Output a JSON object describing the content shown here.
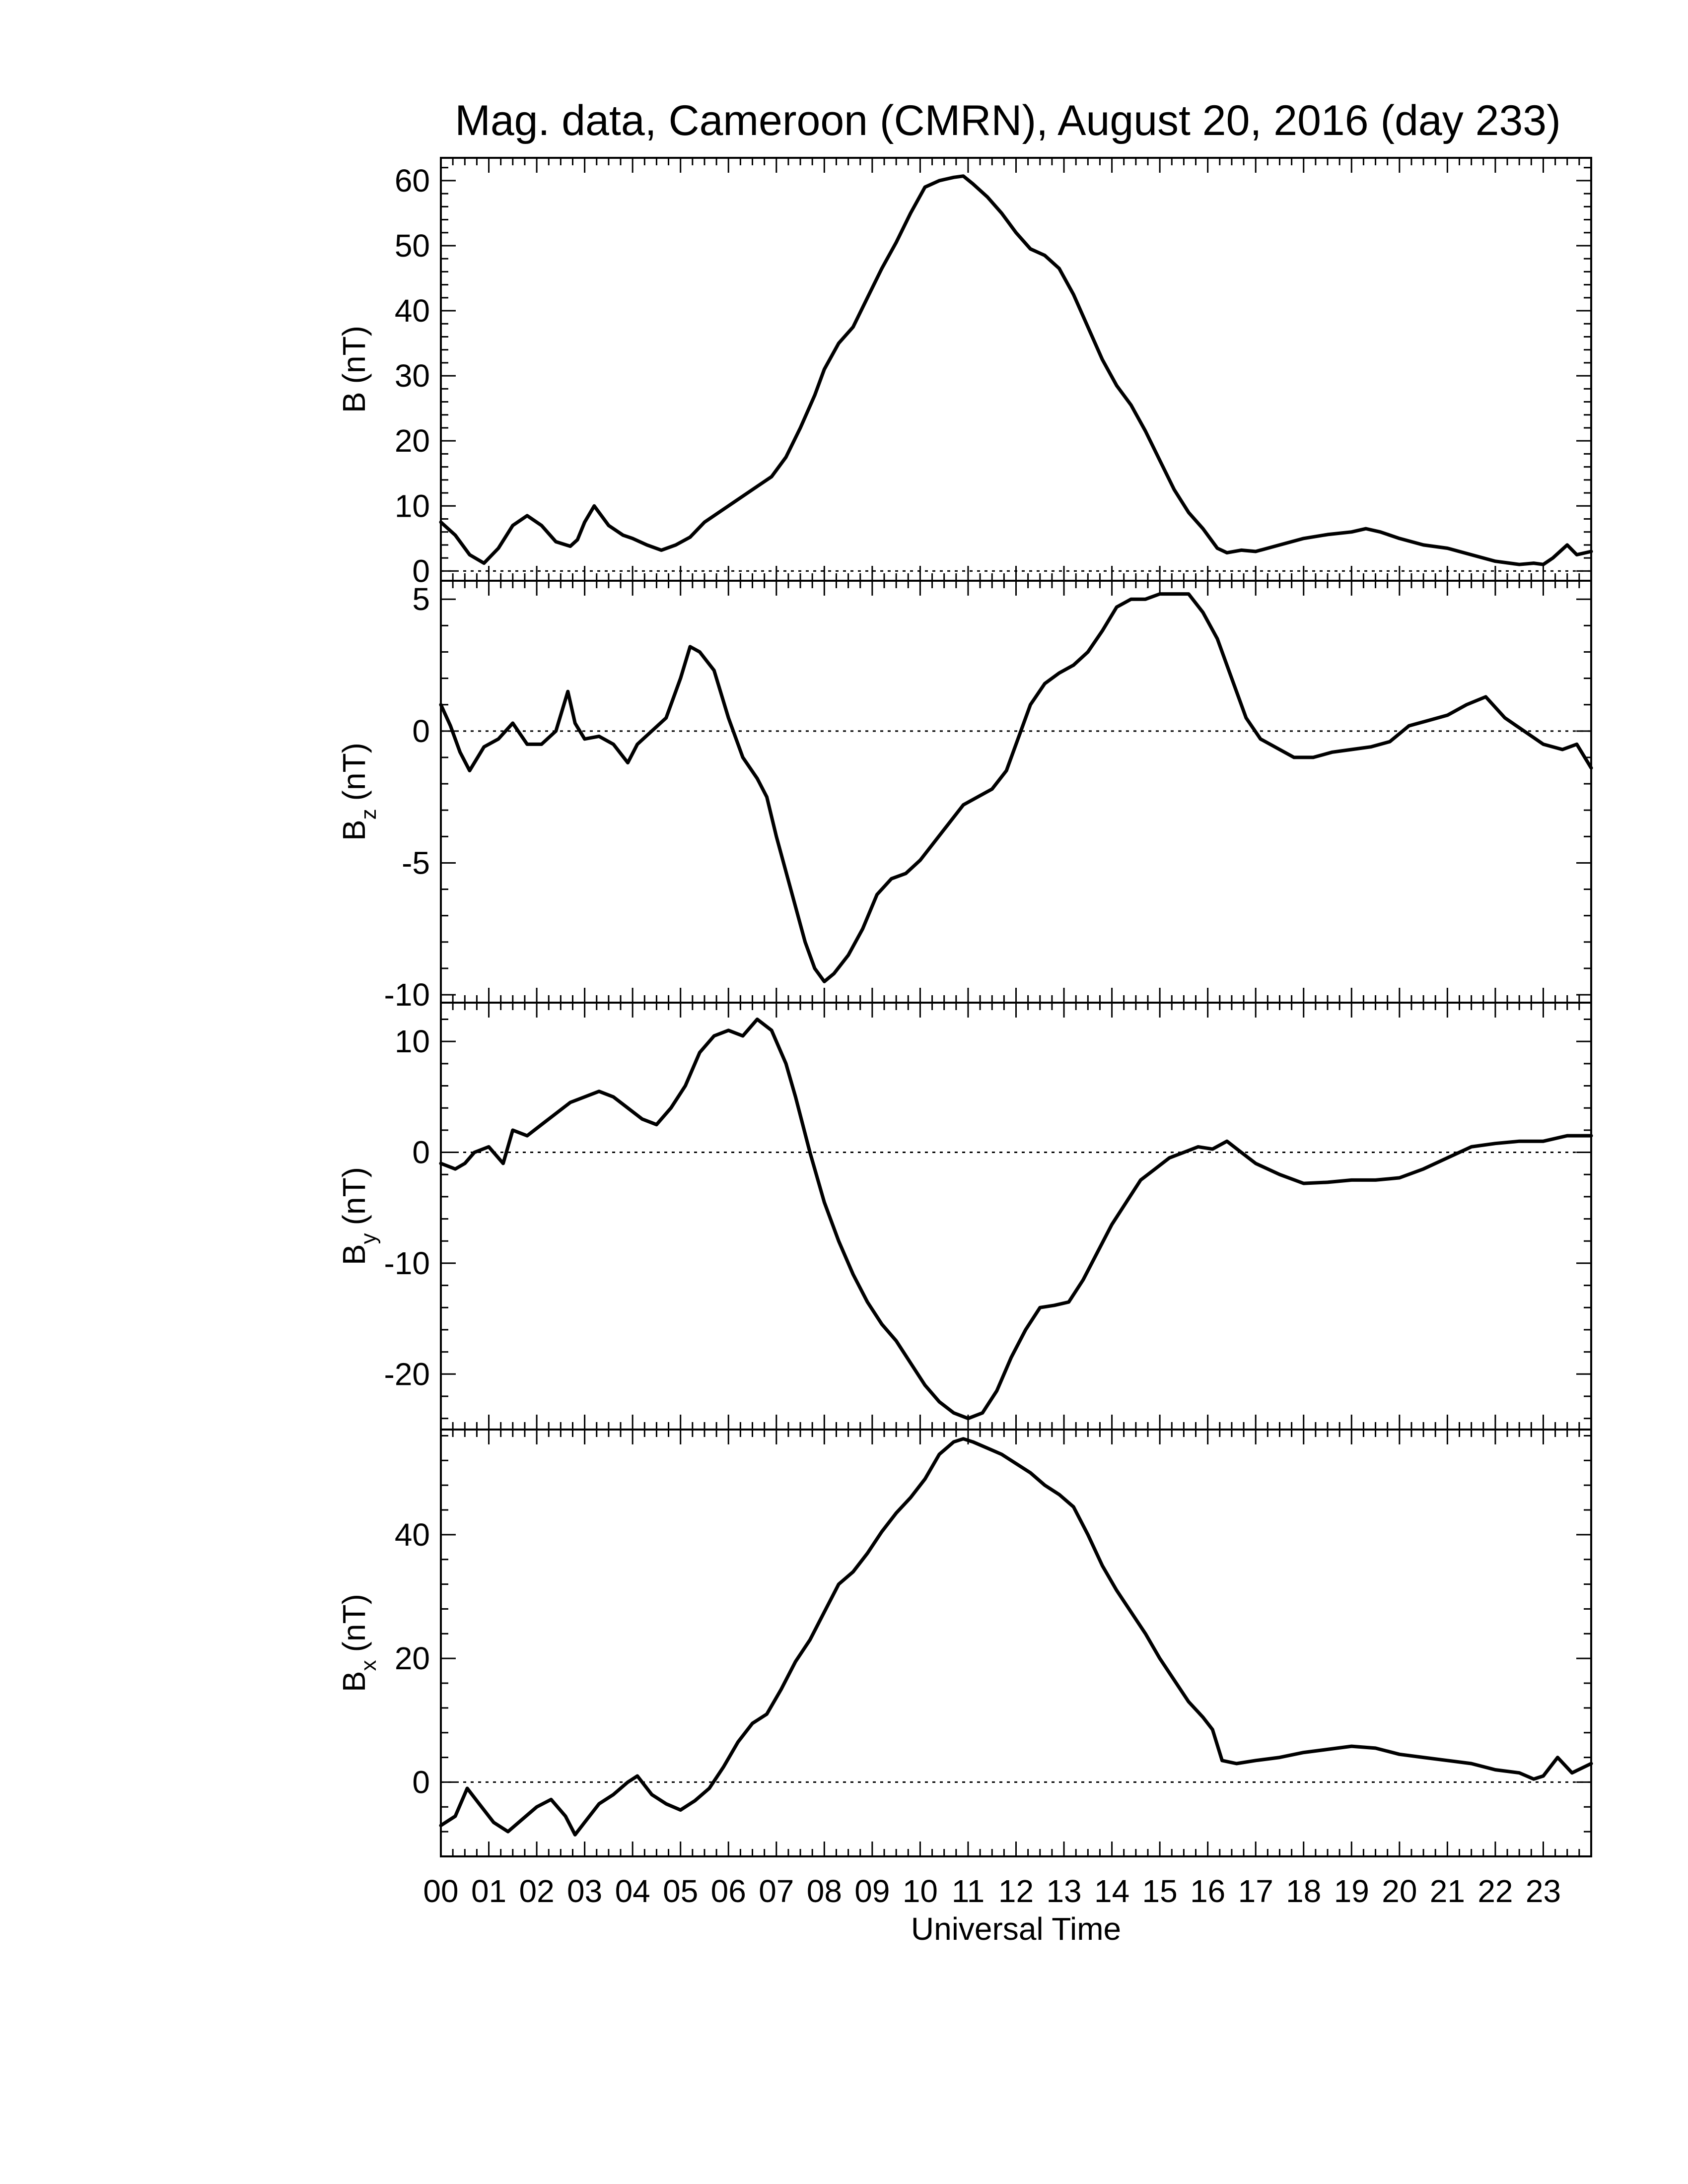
{
  "chart_data": [
    {
      "type": "line",
      "panel": "B",
      "title": "Mag. data, Cameroon (CMRN), August 20, 2016 (day 233)",
      "ylabel": {
        "main": "B",
        "sub": "",
        "unit": "(nT)"
      },
      "ylim": [
        -1.5,
        63.5
      ],
      "yticks": [
        0,
        10,
        20,
        30,
        40,
        50,
        60
      ],
      "zero_line": true,
      "x": [
        0,
        0.3,
        0.6,
        0.9,
        1.2,
        1.5,
        1.8,
        2.1,
        2.4,
        2.7,
        2.85,
        3.0,
        3.2,
        3.5,
        3.8,
        4.0,
        4.3,
        4.6,
        4.9,
        5.2,
        5.5,
        5.8,
        6.1,
        6.4,
        6.6,
        6.9,
        7.2,
        7.5,
        7.8,
        8.0,
        8.3,
        8.6,
        8.9,
        9.2,
        9.5,
        9.8,
        10.1,
        10.4,
        10.7,
        10.9,
        11.1,
        11.4,
        11.7,
        12.0,
        12.3,
        12.6,
        12.9,
        13.2,
        13.5,
        13.8,
        14.1,
        14.4,
        14.7,
        15.0,
        15.3,
        15.6,
        15.9,
        16.2,
        16.4,
        16.7,
        17.0,
        17.5,
        18.0,
        18.5,
        19.0,
        19.3,
        19.6,
        20.0,
        20.5,
        21.0,
        21.5,
        22.0,
        22.5,
        22.8,
        23.0,
        23.2,
        23.5,
        23.7,
        24.0
      ],
      "values": [
        7.5,
        5.5,
        2.5,
        1.2,
        3.5,
        7.0,
        8.5,
        7.0,
        4.5,
        3.8,
        4.8,
        7.5,
        10.0,
        7.0,
        5.5,
        5.0,
        4.0,
        3.2,
        4.0,
        5.2,
        7.5,
        9.0,
        10.5,
        12.0,
        13.0,
        14.5,
        17.5,
        22.0,
        27.0,
        31.0,
        35.0,
        37.5,
        42.0,
        46.5,
        50.5,
        55.0,
        59.0,
        60.0,
        60.5,
        60.7,
        59.5,
        57.5,
        55.0,
        52.0,
        49.5,
        48.5,
        46.5,
        42.5,
        37.5,
        32.5,
        28.5,
        25.5,
        21.5,
        17.0,
        12.5,
        9.0,
        6.5,
        3.5,
        2.8,
        3.2,
        3.0,
        4.0,
        5.0,
        5.6,
        6.0,
        6.5,
        6.0,
        5.0,
        4.0,
        3.5,
        2.5,
        1.5,
        1.0,
        1.2,
        1.0,
        2.0,
        4.0,
        2.5,
        3.0
      ]
    },
    {
      "type": "line",
      "panel": "Bz",
      "ylabel": {
        "main": "B",
        "sub": "z",
        "unit": "(nT)"
      },
      "ylim": [
        -10.3,
        5.7
      ],
      "yticks": [
        -10,
        -5,
        0,
        5
      ],
      "zero_line": true,
      "x": [
        0,
        0.2,
        0.4,
        0.6,
        0.9,
        1.2,
        1.5,
        1.8,
        2.1,
        2.4,
        2.65,
        2.8,
        3.0,
        3.3,
        3.6,
        3.9,
        4.1,
        4.4,
        4.7,
        5.0,
        5.2,
        5.4,
        5.7,
        6.0,
        6.3,
        6.6,
        6.8,
        7.0,
        7.3,
        7.6,
        7.8,
        8.0,
        8.2,
        8.5,
        8.8,
        9.1,
        9.4,
        9.7,
        10.0,
        10.3,
        10.6,
        10.9,
        11.2,
        11.5,
        11.8,
        12.0,
        12.3,
        12.6,
        12.9,
        13.2,
        13.5,
        13.8,
        14.1,
        14.4,
        14.7,
        15.0,
        15.3,
        15.6,
        15.9,
        16.2,
        16.5,
        16.8,
        17.1,
        17.4,
        17.8,
        18.2,
        18.6,
        19.0,
        19.4,
        19.8,
        20.2,
        20.6,
        21.0,
        21.4,
        21.8,
        22.2,
        22.6,
        23.0,
        23.4,
        23.7,
        24.0
      ],
      "values": [
        1.0,
        0.2,
        -0.8,
        -1.5,
        -0.6,
        -0.3,
        0.3,
        -0.5,
        -0.5,
        0.0,
        1.5,
        0.3,
        -0.3,
        -0.2,
        -0.5,
        -1.2,
        -0.5,
        0.0,
        0.5,
        2.0,
        3.2,
        3.0,
        2.3,
        0.5,
        -1.0,
        -1.8,
        -2.5,
        -4.0,
        -6.0,
        -8.0,
        -9.0,
        -9.5,
        -9.2,
        -8.5,
        -7.5,
        -6.2,
        -5.6,
        -5.4,
        -4.9,
        -4.2,
        -3.5,
        -2.8,
        -2.5,
        -2.2,
        -1.5,
        -0.5,
        1.0,
        1.8,
        2.2,
        2.5,
        3.0,
        3.8,
        4.7,
        5.0,
        5.0,
        5.2,
        5.2,
        5.2,
        4.5,
        3.5,
        2.0,
        0.5,
        -0.3,
        -0.6,
        -1.0,
        -1.0,
        -0.8,
        -0.7,
        -0.6,
        -0.4,
        0.2,
        0.4,
        0.6,
        1.0,
        1.3,
        0.5,
        0.0,
        -0.5,
        -0.7,
        -0.5,
        -1.4
      ]
    },
    {
      "type": "line",
      "panel": "By",
      "ylabel": {
        "main": "B",
        "sub": "y",
        "unit": "(nT)"
      },
      "ylim": [
        -25.0,
        13.5
      ],
      "yticks": [
        -20,
        -10,
        0,
        10
      ],
      "zero_line": true,
      "x": [
        0,
        0.3,
        0.5,
        0.7,
        1.0,
        1.3,
        1.5,
        1.8,
        2.1,
        2.4,
        2.7,
        3.0,
        3.3,
        3.6,
        3.9,
        4.2,
        4.5,
        4.8,
        5.1,
        5.4,
        5.7,
        6.0,
        6.3,
        6.6,
        6.9,
        7.2,
        7.4,
        7.7,
        8.0,
        8.3,
        8.6,
        8.9,
        9.2,
        9.5,
        9.8,
        10.1,
        10.4,
        10.7,
        11.0,
        11.3,
        11.6,
        11.9,
        12.2,
        12.5,
        12.8,
        13.1,
        13.4,
        13.7,
        14.0,
        14.3,
        14.6,
        14.9,
        15.2,
        15.5,
        15.8,
        16.1,
        16.4,
        16.7,
        17.0,
        17.5,
        18.0,
        18.5,
        19.0,
        19.5,
        20.0,
        20.5,
        21.0,
        21.5,
        22.0,
        22.5,
        23.0,
        23.5,
        24.0
      ],
      "values": [
        -1.0,
        -1.5,
        -1.0,
        0.0,
        0.5,
        -1.0,
        2.0,
        1.5,
        2.5,
        3.5,
        4.5,
        5.0,
        5.5,
        5.0,
        4.0,
        3.0,
        2.5,
        4.0,
        6.0,
        9.0,
        10.5,
        11.0,
        10.5,
        12.0,
        11.0,
        8.0,
        5.0,
        0.0,
        -4.5,
        -8.0,
        -11.0,
        -13.5,
        -15.5,
        -17.0,
        -19.0,
        -21.0,
        -22.5,
        -23.5,
        -24.0,
        -23.5,
        -21.5,
        -18.5,
        -16.0,
        -14.0,
        -13.8,
        -13.5,
        -11.5,
        -9.0,
        -6.5,
        -4.5,
        -2.5,
        -1.5,
        -0.5,
        0.0,
        0.5,
        0.3,
        1.0,
        0.0,
        -1.0,
        -2.0,
        -2.8,
        -2.7,
        -2.5,
        -2.5,
        -2.3,
        -1.5,
        -0.5,
        0.5,
        0.8,
        1.0,
        1.0,
        1.5,
        1.5
      ]
    },
    {
      "type": "line",
      "panel": "Bx",
      "ylabel": {
        "main": "B",
        "sub": "x",
        "unit": "(nT)"
      },
      "ylim": [
        -12.0,
        57.0
      ],
      "yticks": [
        0,
        20,
        40
      ],
      "zero_line": true,
      "x": [
        0,
        0.3,
        0.55,
        0.8,
        1.1,
        1.4,
        1.7,
        2.0,
        2.3,
        2.6,
        2.8,
        3.0,
        3.3,
        3.6,
        3.9,
        4.1,
        4.4,
        4.7,
        5.0,
        5.3,
        5.6,
        5.9,
        6.2,
        6.5,
        6.8,
        7.1,
        7.4,
        7.7,
        8.0,
        8.3,
        8.6,
        8.9,
        9.2,
        9.5,
        9.8,
        10.1,
        10.4,
        10.7,
        10.9,
        11.1,
        11.4,
        11.7,
        12.0,
        12.3,
        12.6,
        12.9,
        13.2,
        13.5,
        13.8,
        14.1,
        14.4,
        14.7,
        15.0,
        15.3,
        15.6,
        15.9,
        16.1,
        16.3,
        16.6,
        17.0,
        17.5,
        18.0,
        18.5,
        19.0,
        19.5,
        20.0,
        20.5,
        21.0,
        21.5,
        22.0,
        22.5,
        22.8,
        23.0,
        23.3,
        23.6,
        24.0
      ],
      "values": [
        -7.0,
        -5.5,
        -1.0,
        -3.5,
        -6.5,
        -8.0,
        -6.0,
        -4.0,
        -2.8,
        -5.5,
        -8.5,
        -6.5,
        -3.5,
        -2.0,
        0.0,
        1.0,
        -2.0,
        -3.5,
        -4.5,
        -3.0,
        -1.0,
        2.5,
        6.5,
        9.5,
        11.0,
        15.0,
        19.5,
        23.0,
        27.5,
        32.0,
        34.0,
        37.0,
        40.5,
        43.5,
        46.0,
        49.0,
        53.0,
        55.0,
        55.5,
        55.0,
        54.0,
        53.0,
        51.5,
        50.0,
        48.0,
        46.5,
        44.5,
        40.0,
        35.0,
        31.0,
        27.5,
        24.0,
        20.0,
        16.5,
        13.0,
        10.5,
        8.5,
        3.5,
        3.0,
        3.5,
        4.0,
        4.8,
        5.3,
        5.8,
        5.5,
        4.5,
        4.0,
        3.5,
        3.0,
        2.0,
        1.5,
        0.5,
        1.0,
        4.0,
        1.5,
        3.0
      ]
    }
  ],
  "xaxis": {
    "label": "Universal Time",
    "range": [
      0,
      24
    ],
    "tick_labels": [
      "00",
      "01",
      "02",
      "03",
      "04",
      "05",
      "06",
      "07",
      "08",
      "09",
      "10",
      "11",
      "12",
      "13",
      "14",
      "15",
      "16",
      "17",
      "18",
      "19",
      "20",
      "21",
      "22",
      "23"
    ]
  }
}
